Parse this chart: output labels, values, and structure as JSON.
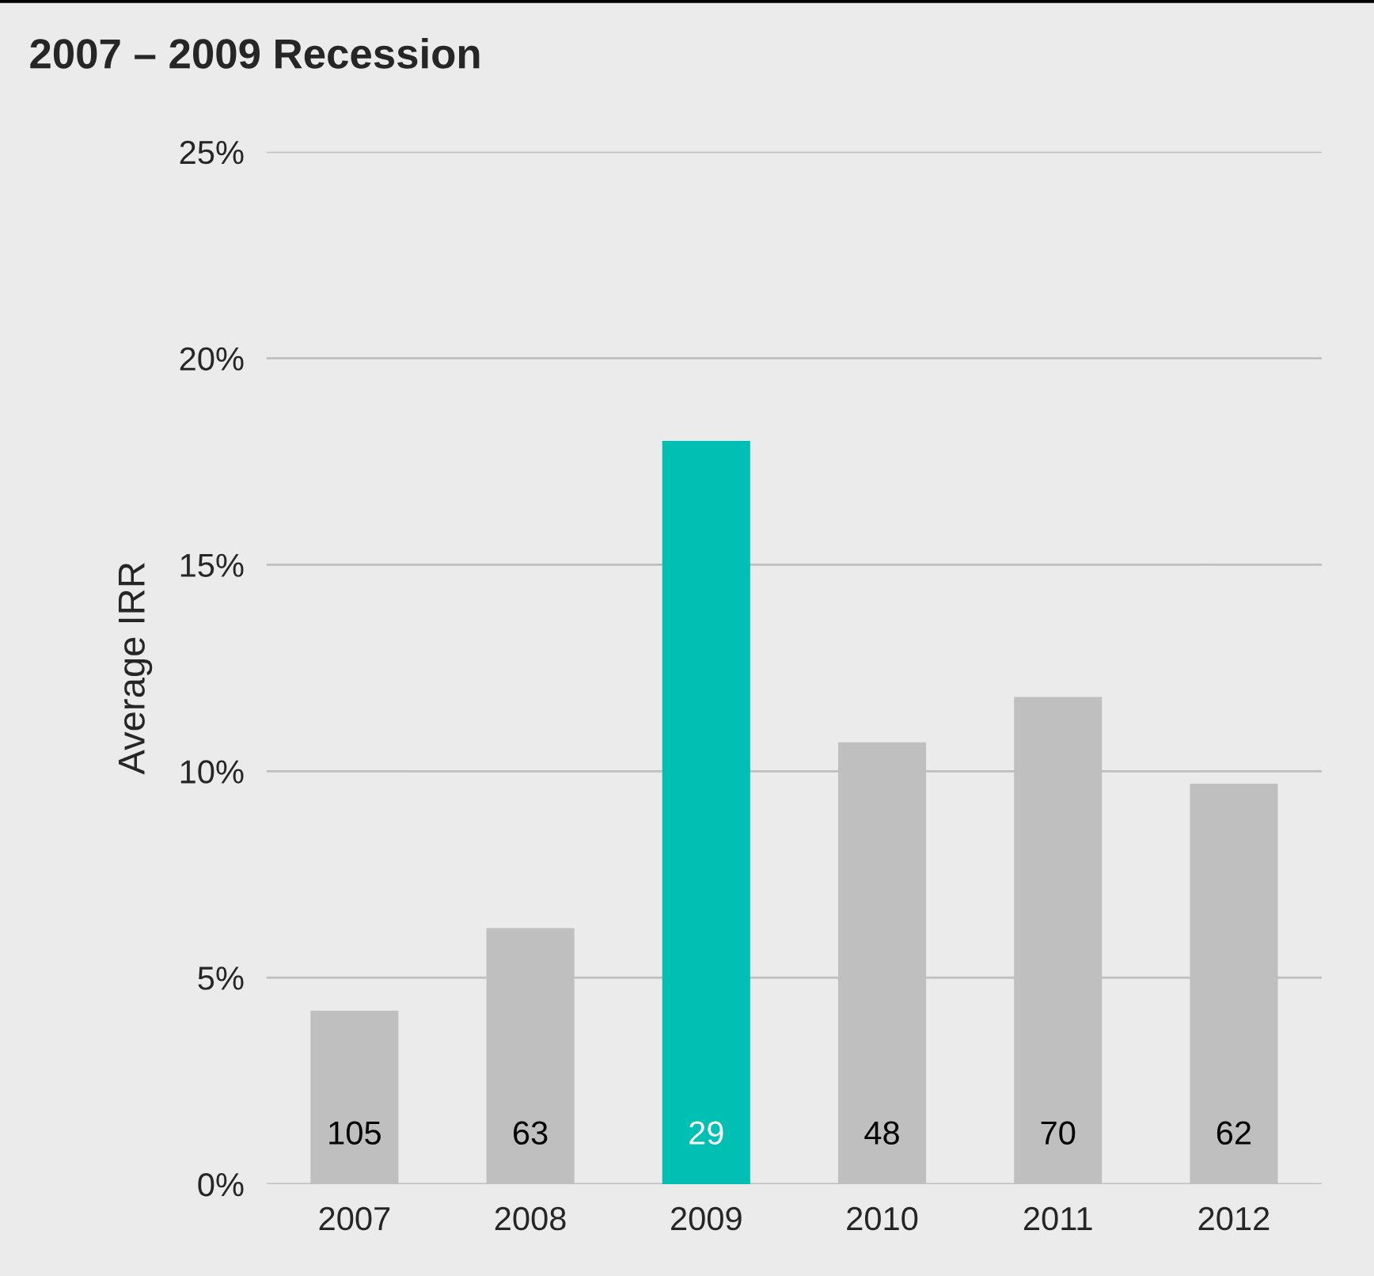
{
  "chart_data": {
    "type": "bar",
    "title": "2007 – 2009 Recession",
    "ylabel": "Average IRR",
    "categories": [
      "2007",
      "2008",
      "2009",
      "2010",
      "2011",
      "2012"
    ],
    "values": [
      4.2,
      6.2,
      18.0,
      10.7,
      11.8,
      9.7
    ],
    "colors": [
      "#bfbfbf",
      "#bfbfbf",
      "#00bfb3",
      "#bfbfbf",
      "#bfbfbf",
      "#bfbfbf"
    ],
    "ylim": [
      0,
      25
    ],
    "yticks": [
      {
        "value": 0,
        "label": "0%"
      },
      {
        "value": 5,
        "label": "5%"
      },
      {
        "value": 10,
        "label": "10%"
      },
      {
        "value": 15,
        "label": "15%"
      },
      {
        "value": 20,
        "label": "20%"
      },
      {
        "value": 25,
        "label": "25%"
      }
    ],
    "grid": "y",
    "legend": false,
    "annotations": [
      "105",
      "63",
      "29",
      "48",
      "70",
      "62"
    ]
  }
}
